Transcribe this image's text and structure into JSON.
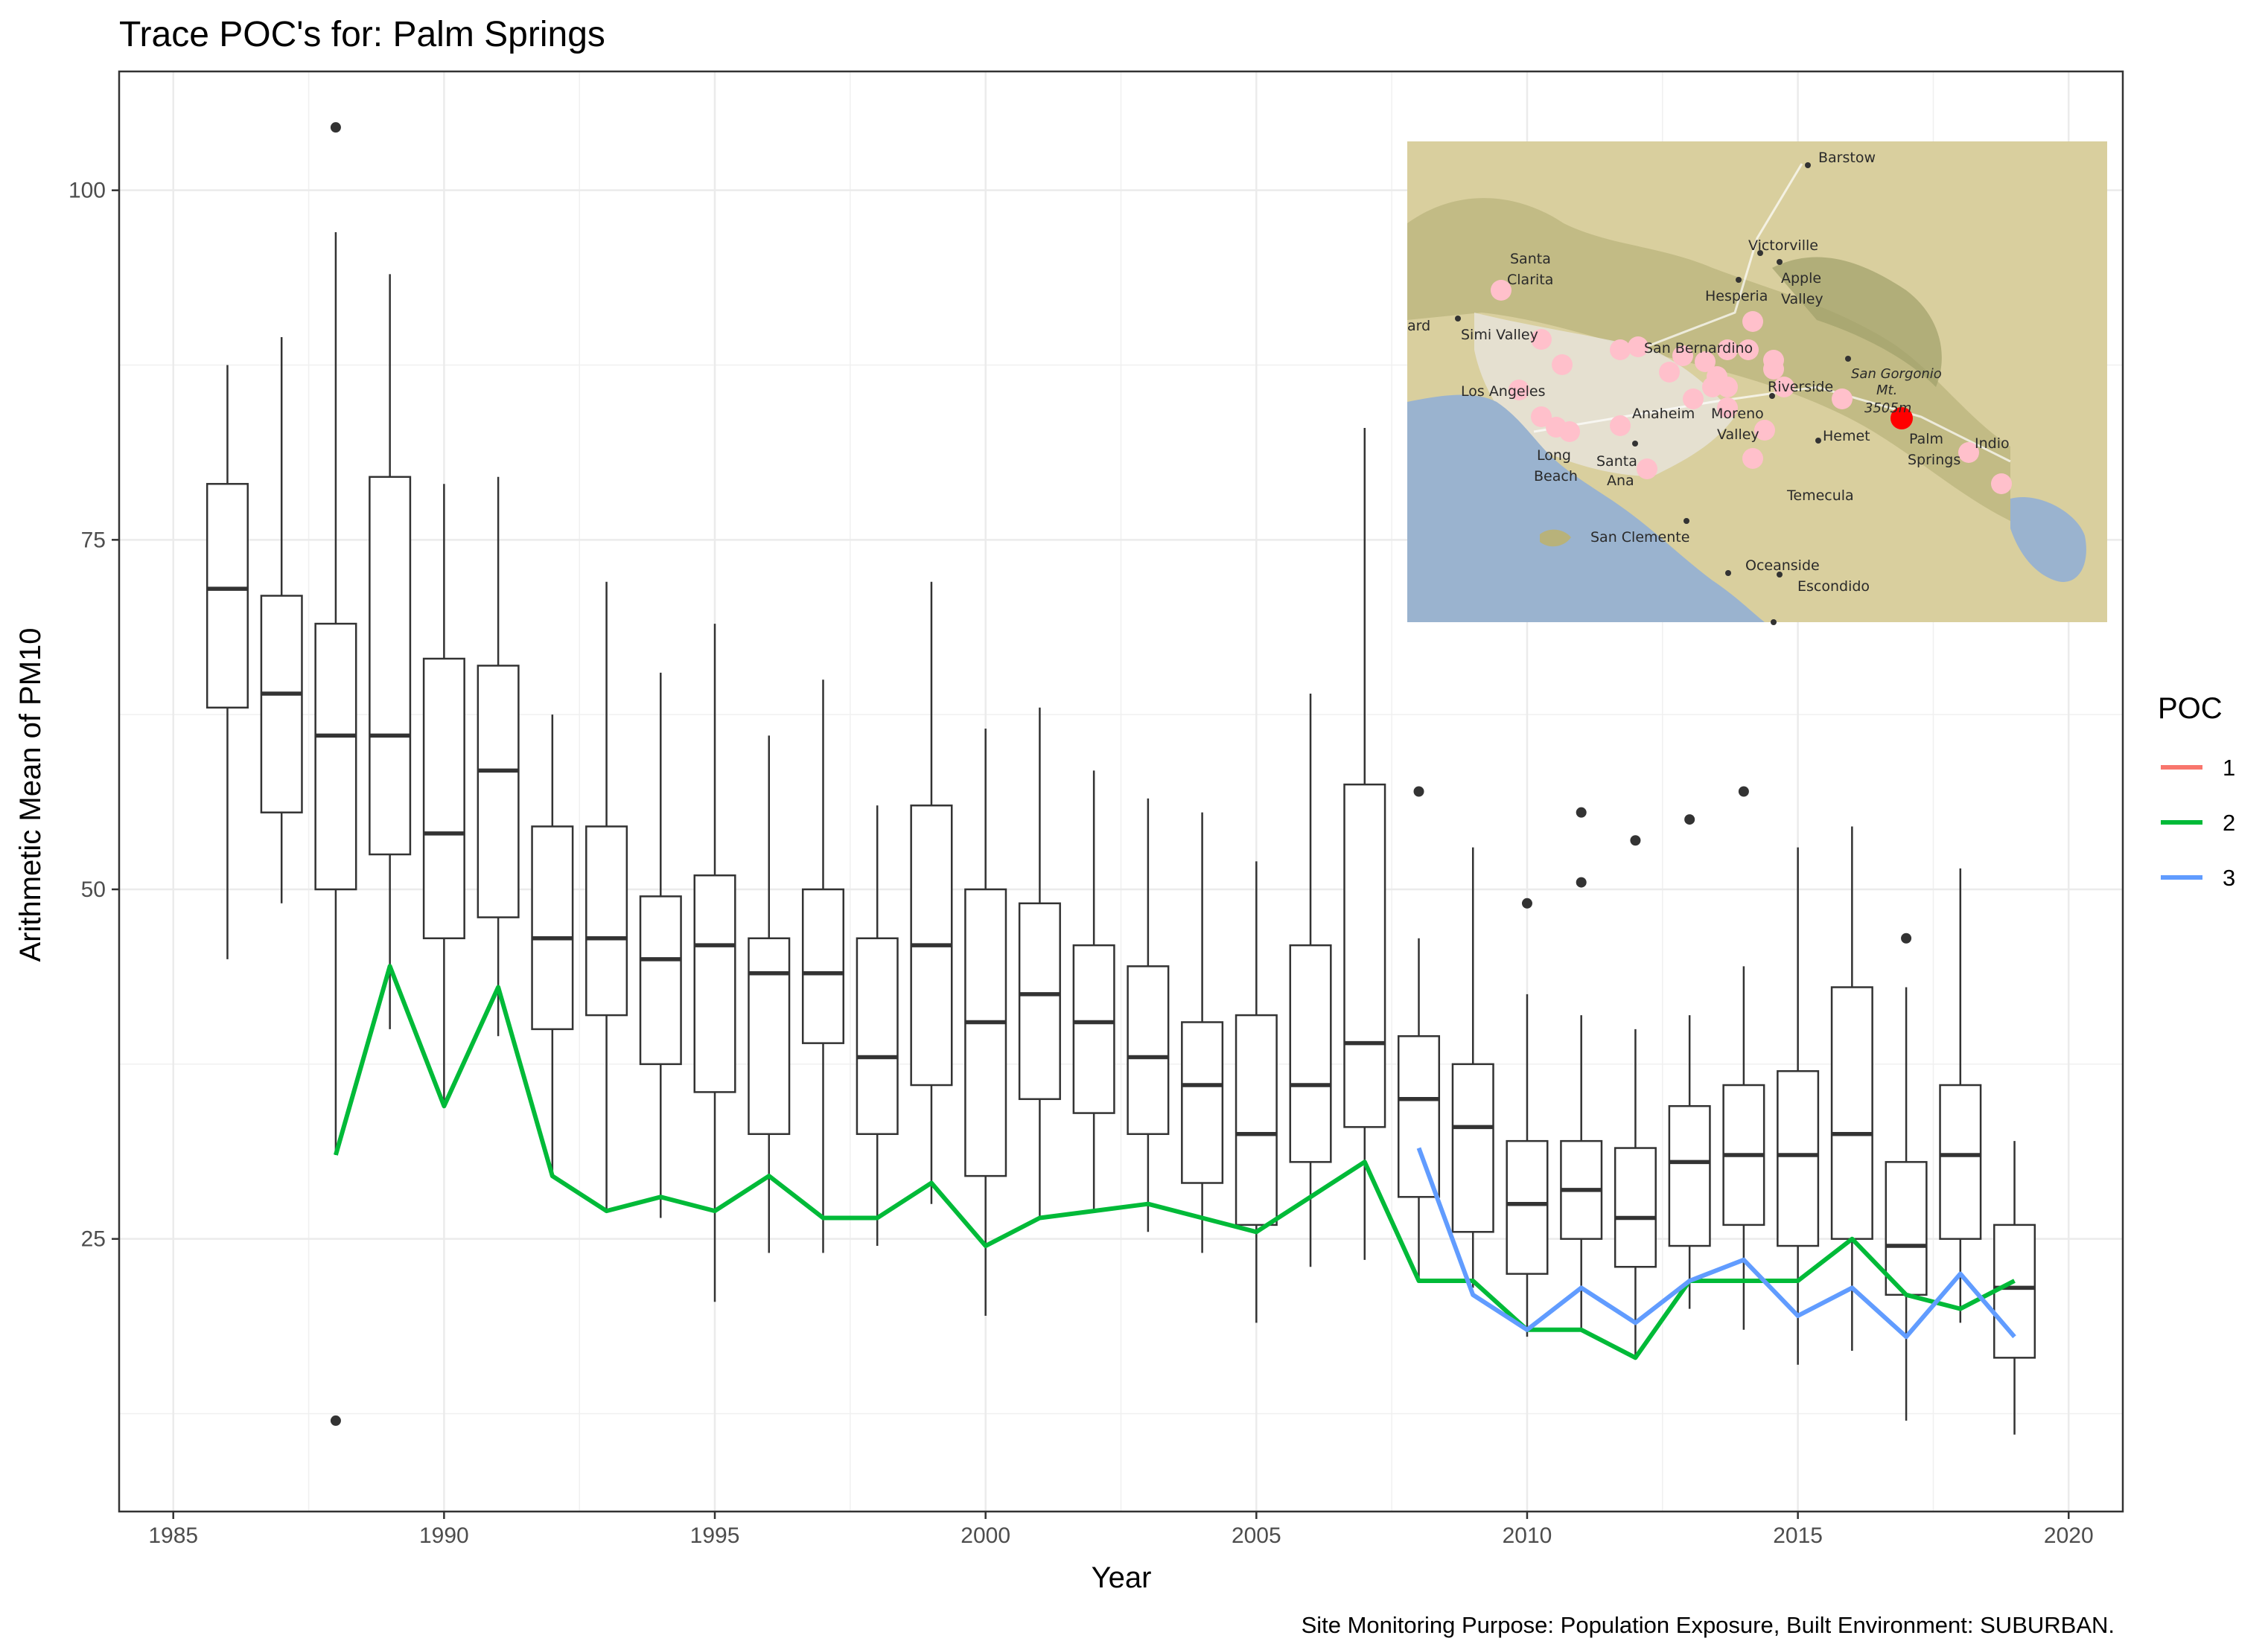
{
  "chart_data": {
    "type": "box",
    "title": "Trace POC's for: Palm Springs",
    "xlabel": "Year",
    "ylabel": "Arithmetic Mean of PM10",
    "caption": "Site Monitoring Purpose: Population Exposure, Built Environment: SUBURBAN.",
    "xlim": [
      1984,
      2021
    ],
    "ylim": [
      5.5,
      108.5
    ],
    "x_ticks": [
      1985,
      1990,
      1995,
      2000,
      2005,
      2010,
      2015,
      2020
    ],
    "x_tick_labels": [
      "1985",
      "1990",
      "1995",
      "2000",
      "2005",
      "2010",
      "2015",
      "2020"
    ],
    "y_ticks": [
      25,
      50,
      75,
      100
    ],
    "y_tick_labels": [
      "25",
      "50",
      "75",
      "100"
    ],
    "grid": true,
    "legend": {
      "title": "POC",
      "position": "right",
      "entries": [
        {
          "label": "1",
          "color": "#F8766D"
        },
        {
          "label": "2",
          "color": "#00BA38"
        },
        {
          "label": "3",
          "color": "#619CFF"
        }
      ]
    },
    "boxes": [
      {
        "x": 1986,
        "lower": 45,
        "q1": 63,
        "median": 71.5,
        "q3": 79,
        "upper": 87.5,
        "outliers": []
      },
      {
        "x": 1987,
        "lower": 49,
        "q1": 55.5,
        "median": 64,
        "q3": 71,
        "upper": 89.5,
        "outliers": []
      },
      {
        "x": 1988,
        "lower": 31,
        "q1": 50,
        "median": 61,
        "q3": 69,
        "upper": 97,
        "outliers": [
          104.5,
          12
        ]
      },
      {
        "x": 1989,
        "lower": 40,
        "q1": 52.5,
        "median": 61,
        "q3": 79.5,
        "upper": 94,
        "outliers": []
      },
      {
        "x": 1990,
        "lower": 34.5,
        "q1": 46.5,
        "median": 54,
        "q3": 66.5,
        "upper": 79,
        "outliers": []
      },
      {
        "x": 1991,
        "lower": 39.5,
        "q1": 48,
        "median": 58.5,
        "q3": 66,
        "upper": 79.5,
        "outliers": []
      },
      {
        "x": 1992,
        "lower": 29.5,
        "q1": 40,
        "median": 46.5,
        "q3": 54.5,
        "upper": 62.5,
        "outliers": []
      },
      {
        "x": 1993,
        "lower": 27,
        "q1": 41,
        "median": 46.5,
        "q3": 54.5,
        "upper": 72,
        "outliers": []
      },
      {
        "x": 1994,
        "lower": 26.5,
        "q1": 37.5,
        "median": 45,
        "q3": 49.5,
        "upper": 65.5,
        "outliers": []
      },
      {
        "x": 1995,
        "lower": 20.5,
        "q1": 35.5,
        "median": 46,
        "q3": 51,
        "upper": 69,
        "outliers": []
      },
      {
        "x": 1996,
        "lower": 24,
        "q1": 32.5,
        "median": 44,
        "q3": 46.5,
        "upper": 61,
        "outliers": []
      },
      {
        "x": 1997,
        "lower": 24,
        "q1": 39,
        "median": 44,
        "q3": 50,
        "upper": 65,
        "outliers": []
      },
      {
        "x": 1998,
        "lower": 24.5,
        "q1": 32.5,
        "median": 38,
        "q3": 46.5,
        "upper": 56,
        "outliers": []
      },
      {
        "x": 1999,
        "lower": 27.5,
        "q1": 36,
        "median": 46,
        "q3": 56,
        "upper": 72,
        "outliers": []
      },
      {
        "x": 2000,
        "lower": 19.5,
        "q1": 29.5,
        "median": 40.5,
        "q3": 50,
        "upper": 61.5,
        "outliers": []
      },
      {
        "x": 2001,
        "lower": 26.5,
        "q1": 35,
        "median": 42.5,
        "q3": 49,
        "upper": 63,
        "outliers": []
      },
      {
        "x": 2002,
        "lower": 27,
        "q1": 34,
        "median": 40.5,
        "q3": 46,
        "upper": 58.5,
        "outliers": []
      },
      {
        "x": 2003,
        "lower": 25.5,
        "q1": 32.5,
        "median": 38,
        "q3": 44.5,
        "upper": 56.5,
        "outliers": []
      },
      {
        "x": 2004,
        "lower": 24,
        "q1": 29,
        "median": 36,
        "q3": 40.5,
        "upper": 55.5,
        "outliers": []
      },
      {
        "x": 2005,
        "lower": 19,
        "q1": 26,
        "median": 32.5,
        "q3": 41,
        "upper": 52,
        "outliers": []
      },
      {
        "x": 2006,
        "lower": 23,
        "q1": 30.5,
        "median": 36,
        "q3": 46,
        "upper": 64,
        "outliers": []
      },
      {
        "x": 2007,
        "lower": 23.5,
        "q1": 33,
        "median": 39,
        "q3": 57.5,
        "upper": 83,
        "outliers": []
      },
      {
        "x": 2008,
        "lower": 22,
        "q1": 28,
        "median": 35,
        "q3": 39.5,
        "upper": 46.5,
        "outliers": [
          57
        ]
      },
      {
        "x": 2009,
        "lower": 21.5,
        "q1": 25.5,
        "median": 33,
        "q3": 37.5,
        "upper": 53,
        "outliers": []
      },
      {
        "x": 2010,
        "lower": 18,
        "q1": 22.5,
        "median": 27.5,
        "q3": 32,
        "upper": 42.5,
        "outliers": [
          49
        ]
      },
      {
        "x": 2011,
        "lower": 18.5,
        "q1": 25,
        "median": 28.5,
        "q3": 32,
        "upper": 41,
        "outliers": [
          55.5,
          50.5
        ]
      },
      {
        "x": 2012,
        "lower": 16.5,
        "q1": 23,
        "median": 26.5,
        "q3": 31.5,
        "upper": 40,
        "outliers": [
          53.5
        ]
      },
      {
        "x": 2013,
        "lower": 20,
        "q1": 24.5,
        "median": 30.5,
        "q3": 34.5,
        "upper": 41,
        "outliers": [
          55
        ]
      },
      {
        "x": 2014,
        "lower": 18.5,
        "q1": 26,
        "median": 31,
        "q3": 36,
        "upper": 44.5,
        "outliers": [
          57
        ]
      },
      {
        "x": 2015,
        "lower": 16,
        "q1": 24.5,
        "median": 31,
        "q3": 37,
        "upper": 53,
        "outliers": []
      },
      {
        "x": 2016,
        "lower": 17,
        "q1": 25,
        "median": 32.5,
        "q3": 43,
        "upper": 54.5,
        "outliers": []
      },
      {
        "x": 2017,
        "lower": 12,
        "q1": 21,
        "median": 24.5,
        "q3": 30.5,
        "upper": 43,
        "outliers": [
          46.5
        ]
      },
      {
        "x": 2018,
        "lower": 19,
        "q1": 25,
        "median": 31,
        "q3": 36,
        "upper": 51.5,
        "outliers": []
      },
      {
        "x": 2019,
        "lower": 11,
        "q1": 16.5,
        "median": 21.5,
        "q3": 26,
        "upper": 32,
        "outliers": []
      }
    ],
    "series": [
      {
        "name": "2",
        "color": "#00BA38",
        "points": [
          [
            1988,
            31
          ],
          [
            1989,
            44.5
          ],
          [
            1990,
            34.5
          ],
          [
            1991,
            43
          ],
          [
            1992,
            29.5
          ],
          [
            1993,
            27
          ],
          [
            1994,
            28
          ],
          [
            1995,
            27
          ],
          [
            1996,
            29.5
          ],
          [
            1997,
            26.5
          ],
          [
            1998,
            26.5
          ],
          [
            1999,
            29
          ],
          [
            2000,
            24.5
          ],
          [
            2001,
            26.5
          ],
          [
            2002,
            27
          ],
          [
            2003,
            27.5
          ],
          [
            2004,
            26.5
          ],
          [
            2005,
            25.5
          ],
          [
            2006,
            28
          ],
          [
            2007,
            30.5
          ],
          [
            2008,
            22
          ],
          [
            2009,
            22
          ],
          [
            2010,
            18.5
          ],
          [
            2011,
            18.5
          ],
          [
            2012,
            16.5
          ],
          [
            2013,
            22
          ],
          [
            2014,
            22
          ],
          [
            2015,
            22
          ],
          [
            2016,
            25
          ],
          [
            2017,
            21
          ],
          [
            2018,
            20
          ],
          [
            2019,
            22
          ]
        ]
      },
      {
        "name": "3",
        "color": "#619CFF",
        "points": [
          [
            2008,
            31.5
          ],
          [
            2009,
            21
          ],
          [
            2010,
            18.5
          ],
          [
            2011,
            21.5
          ],
          [
            2012,
            19
          ],
          [
            2013,
            22
          ],
          [
            2014,
            23.5
          ],
          [
            2015,
            19.5
          ],
          [
            2016,
            21.5
          ],
          [
            2017,
            18
          ],
          [
            2018,
            22.5
          ],
          [
            2019,
            18
          ]
        ]
      }
    ]
  },
  "inset_map": {
    "labels": [
      "Barstow",
      "Victorville",
      "Apple",
      "Valley",
      "Hesperia",
      "Santa",
      "Clarita",
      "Simi Valley",
      "ard",
      "San Bernardino",
      "Los Angeles",
      "Riverside",
      "San Gorgonio",
      "Mt.",
      "3505m",
      "Anaheim",
      "Moreno",
      "Valley",
      "Hemet",
      "Palm",
      "Springs",
      "Indio",
      "Long",
      "Beach",
      "Santa",
      "Ana",
      "Temecula",
      "San Clemente",
      "Oceanside",
      "Escondido"
    ],
    "site_color": "#ff0000",
    "other_site_color": "#ffc0cb"
  }
}
